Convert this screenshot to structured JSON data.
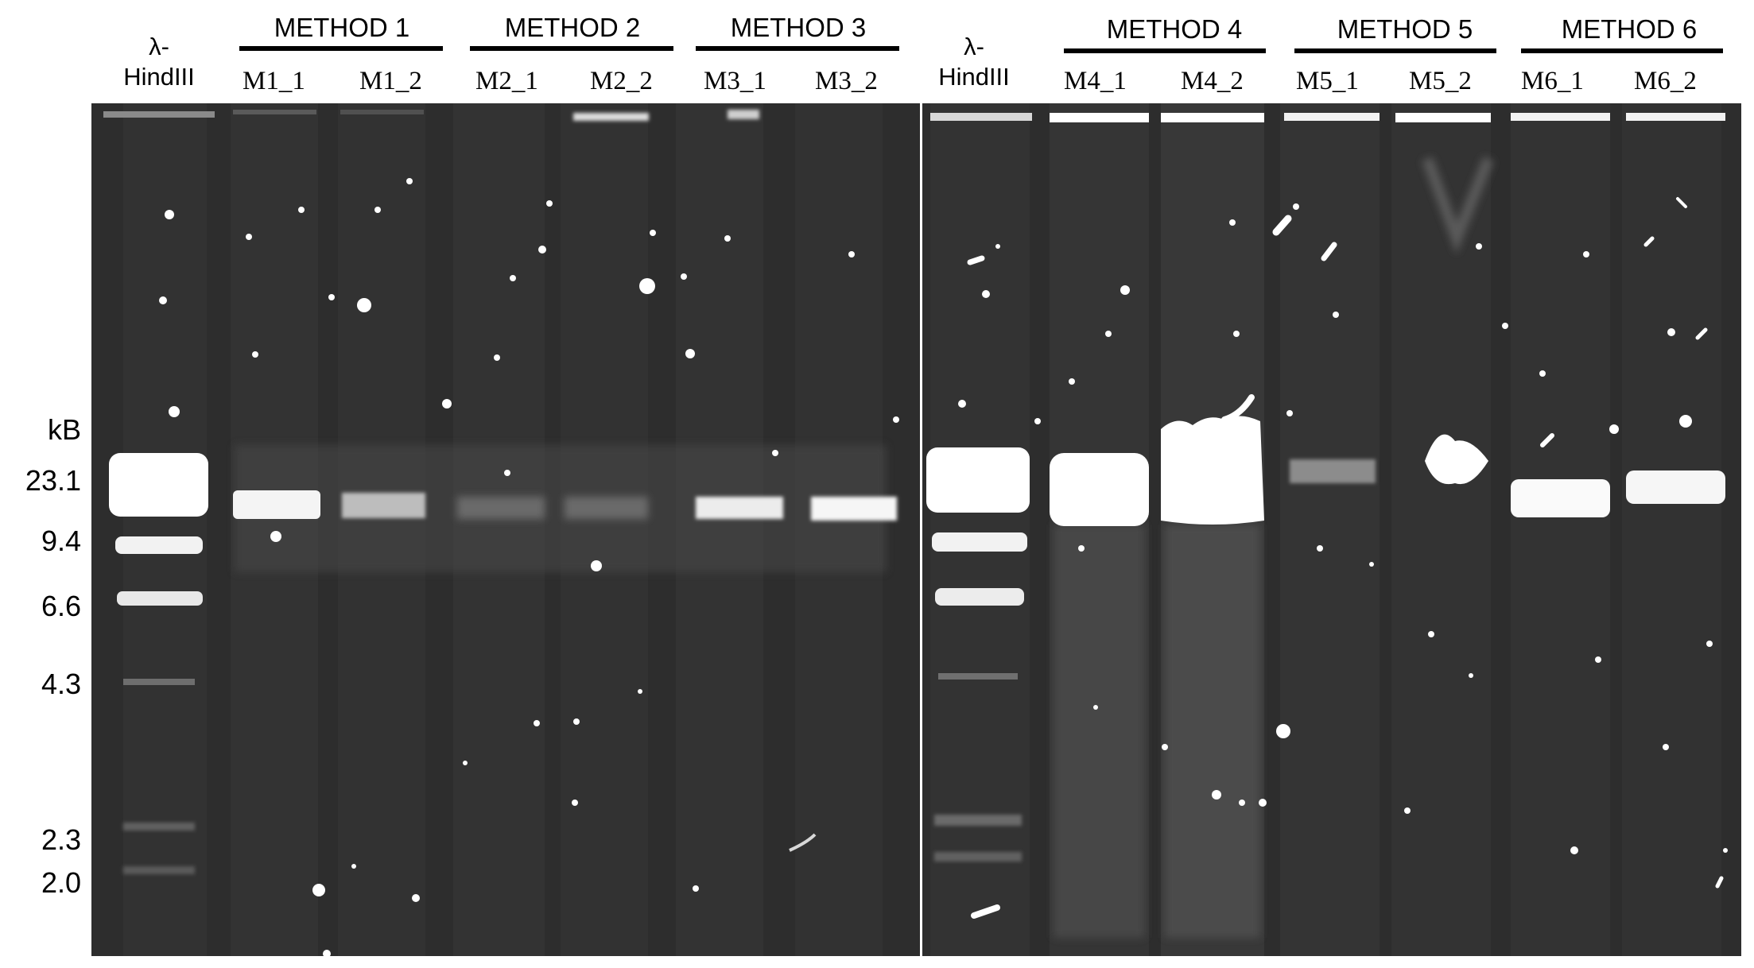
{
  "figure": {
    "type": "agarose gel electrophoresis image",
    "size_unit_label": "kB",
    "marker_ticks": [
      "23.1",
      "9.4",
      "6.6",
      "4.3",
      "2.3",
      "2.0"
    ],
    "panel_left": {
      "ladder_label": [
        "λ-",
        "HindIII"
      ],
      "methods": [
        "METHOD 1",
        "METHOD 2",
        "METHOD 3"
      ],
      "lanes": [
        "M1_1",
        "M1_2",
        "M2_1",
        "M2_2",
        "M3_1",
        "M3_2"
      ]
    },
    "panel_right": {
      "ladder_label": [
        "λ-",
        "HindIII"
      ],
      "methods": [
        "METHOD 4",
        "METHOD 5",
        "METHOD 6"
      ],
      "lanes": [
        "M4_1",
        "M4_2",
        "M5_1",
        "M5_2",
        "M6_1",
        "M6_2"
      ]
    }
  },
  "colors": {
    "gel_background": "#2d2d2d",
    "band": "#ffffff",
    "lane_well": "#3a3a3a"
  }
}
